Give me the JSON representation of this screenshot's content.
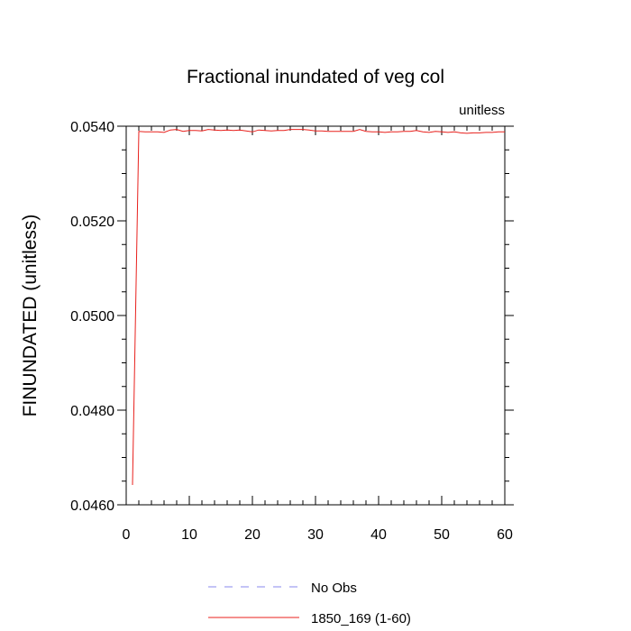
{
  "chart_data": {
    "type": "line",
    "title": "Fractional inundated of veg col",
    "units_label": "unitless",
    "ylabel": "FINUNDATED  (unitless)",
    "xlabel": "",
    "xlim": [
      0,
      60
    ],
    "ylim": [
      0.046,
      0.054
    ],
    "x_ticks": [
      0,
      10,
      20,
      30,
      40,
      50,
      60
    ],
    "x_tick_labels": [
      "0",
      "10",
      "20",
      "30",
      "40",
      "50",
      "60"
    ],
    "y_ticks": [
      0.046,
      0.048,
      0.05,
      0.052,
      0.054
    ],
    "y_tick_labels": [
      "0.0460",
      "0.0480",
      "0.0500",
      "0.0520",
      "0.0540"
    ],
    "grid": false,
    "legend_position": "bottom",
    "series": [
      {
        "name": "No Obs",
        "color": "#8888ee",
        "dash": "dashed",
        "x": [],
        "y": []
      },
      {
        "name": "1850_169 (1-60)",
        "color": "#e8201c",
        "dash": "solid",
        "x": [
          1,
          2,
          3,
          4,
          5,
          6,
          7,
          8,
          9,
          10,
          11,
          12,
          13,
          14,
          15,
          16,
          17,
          18,
          19,
          20,
          21,
          22,
          23,
          24,
          25,
          26,
          27,
          28,
          29,
          30,
          31,
          32,
          33,
          34,
          35,
          36,
          37,
          38,
          39,
          40,
          41,
          42,
          43,
          44,
          45,
          46,
          47,
          48,
          49,
          50,
          51,
          52,
          53,
          54,
          55,
          56,
          57,
          58,
          59,
          60
        ],
        "y": [
          0.04642,
          0.05389,
          0.05388,
          0.05388,
          0.05388,
          0.05387,
          0.05392,
          0.05393,
          0.05389,
          0.05391,
          0.05391,
          0.0539,
          0.05393,
          0.05392,
          0.05391,
          0.05392,
          0.05391,
          0.05392,
          0.0539,
          0.05388,
          0.05392,
          0.05391,
          0.0539,
          0.05391,
          0.05391,
          0.05393,
          0.05393,
          0.05393,
          0.05392,
          0.0539,
          0.0539,
          0.05389,
          0.05389,
          0.05389,
          0.05389,
          0.05389,
          0.05393,
          0.05389,
          0.05388,
          0.05388,
          0.05387,
          0.05388,
          0.05388,
          0.05389,
          0.05389,
          0.05391,
          0.05388,
          0.05387,
          0.05389,
          0.05388,
          0.05387,
          0.05388,
          0.05386,
          0.05385,
          0.05386,
          0.05386,
          0.05387,
          0.05387,
          0.05388,
          0.05388
        ]
      }
    ]
  }
}
